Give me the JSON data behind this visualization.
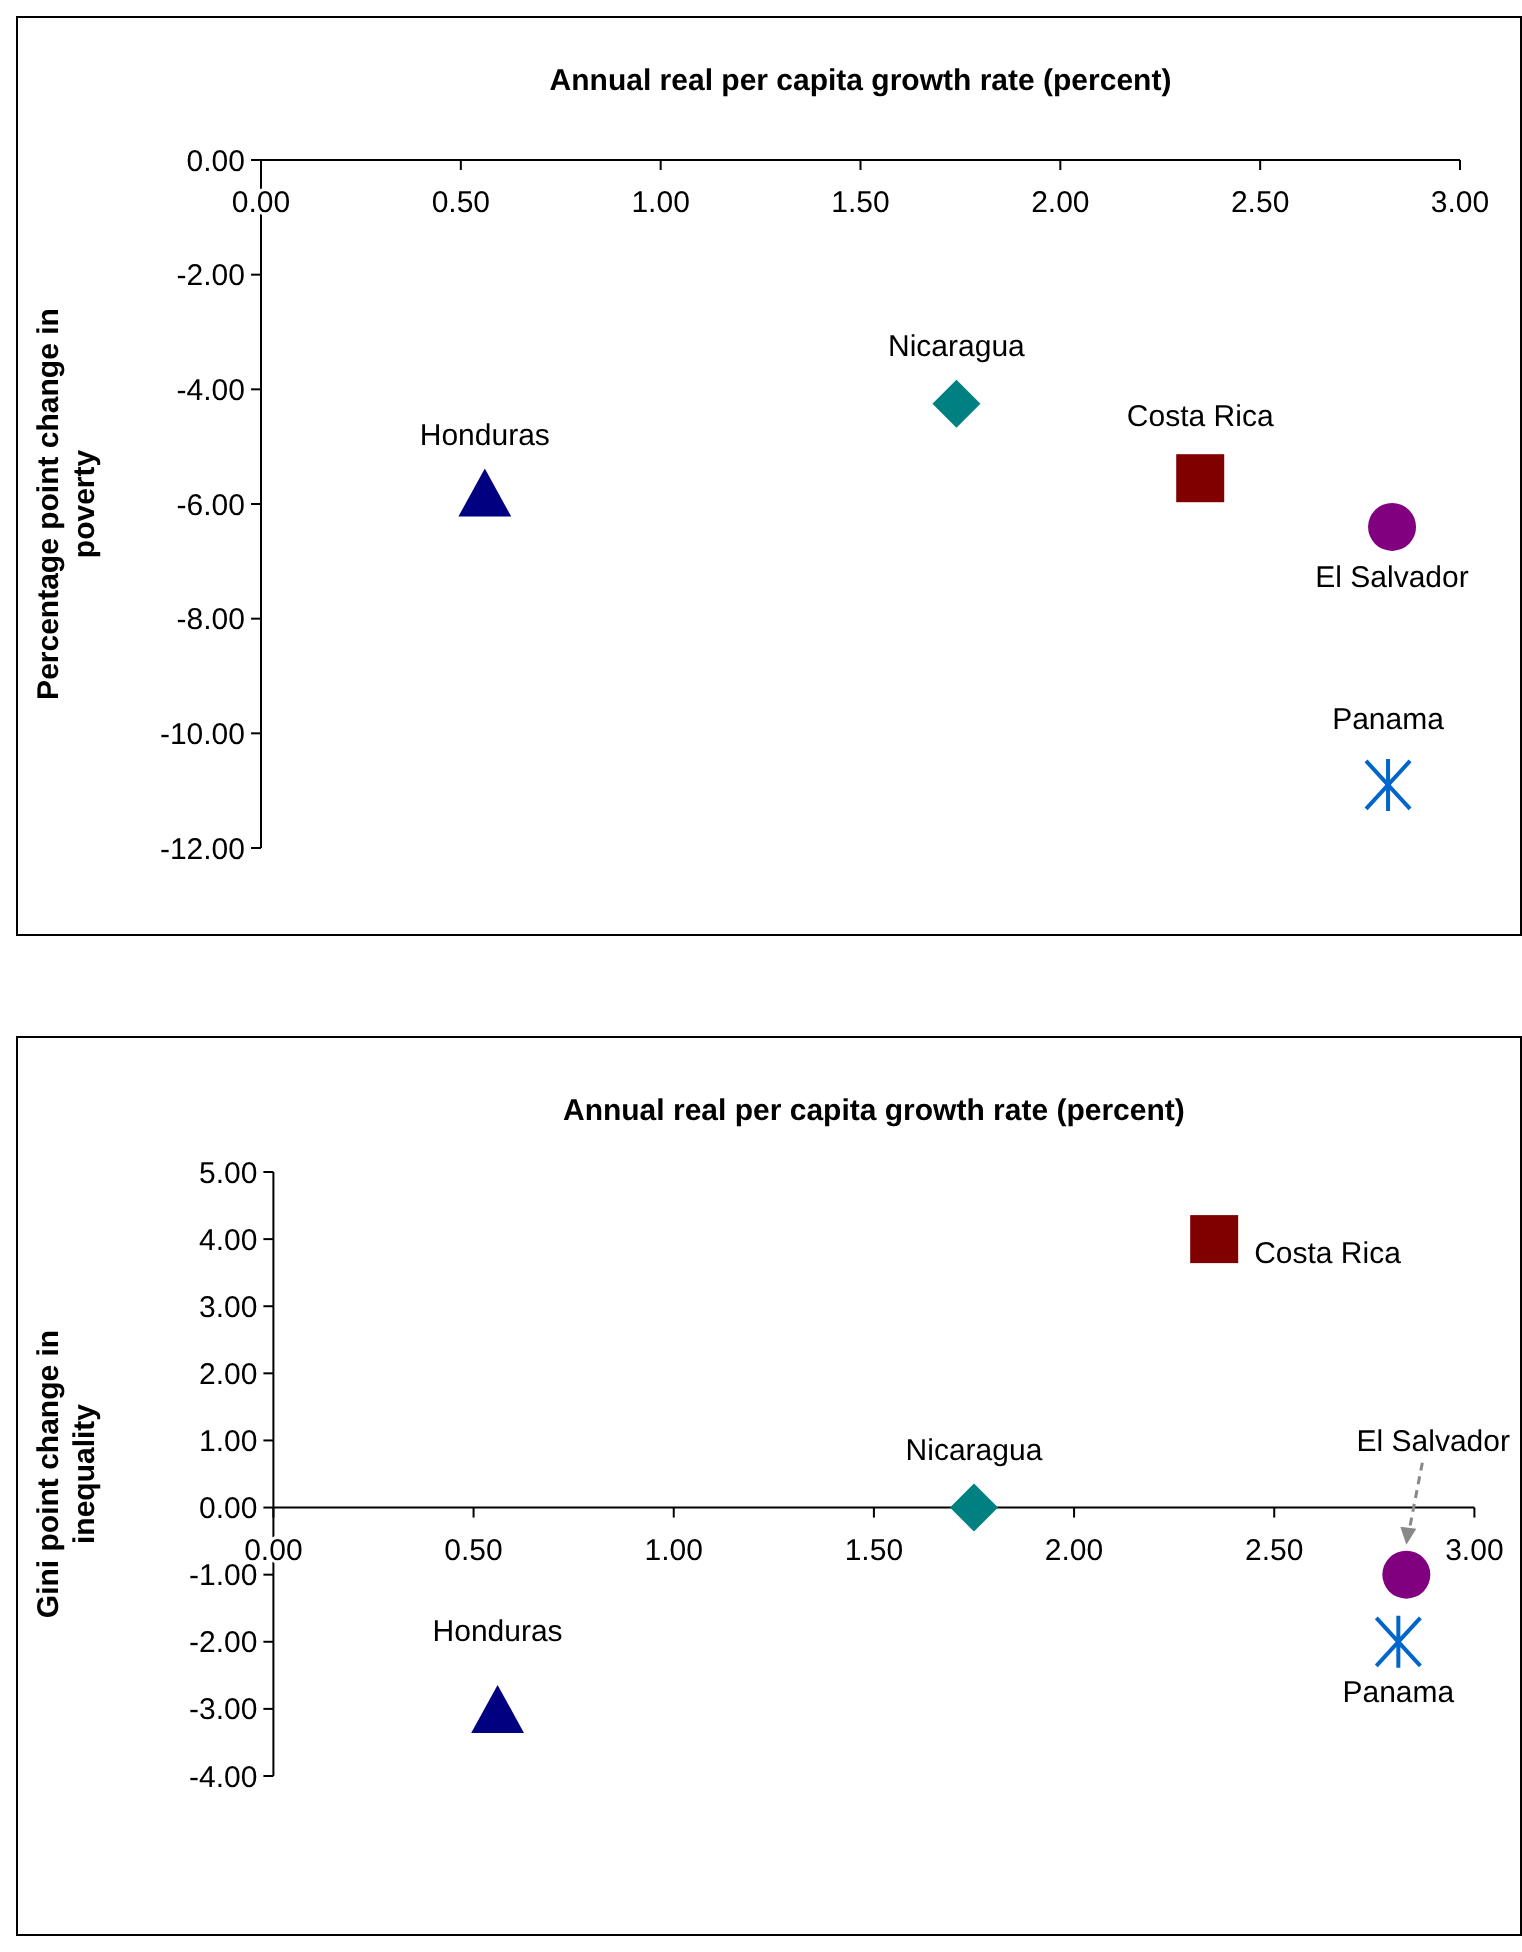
{
  "chart_data": [
    {
      "type": "scatter",
      "xlabel": "Annual real per capita growth rate (percent)",
      "ylabel": "Percentage point change in poverty",
      "xlim": [
        0,
        3
      ],
      "xticks": [
        {
          "value": 0,
          "label": "0.00"
        },
        {
          "value": 0.5,
          "label": "0.50"
        },
        {
          "value": 1,
          "label": "1.00"
        },
        {
          "value": 1.5,
          "label": "1.50"
        },
        {
          "value": 2,
          "label": "2.00"
        },
        {
          "value": 2.5,
          "label": "2.50"
        },
        {
          "value": 3,
          "label": "3.00"
        }
      ],
      "ylim": [
        -12,
        0
      ],
      "yticks": [
        {
          "value": 0,
          "label": "0.00"
        },
        {
          "value": -2,
          "label": "-2.00"
        },
        {
          "value": -4,
          "label": "-4.00"
        },
        {
          "value": -6,
          "label": "-6.00"
        },
        {
          "value": -8,
          "label": "-8.00"
        },
        {
          "value": -10,
          "label": "-10.00"
        },
        {
          "value": -12,
          "label": "-12.00"
        }
      ],
      "series": [
        {
          "name": "Honduras",
          "color": "#000080",
          "marker": "triangle",
          "x": [
            0.56
          ],
          "values": [
            -5.8
          ]
        },
        {
          "name": "Nicaragua",
          "color": "#008080",
          "marker": "diamond",
          "x": [
            1.74
          ],
          "values": [
            -4.25
          ]
        },
        {
          "name": "Costa Rica",
          "color": "#800000",
          "marker": "square",
          "x": [
            2.35
          ],
          "values": [
            -5.55
          ]
        },
        {
          "name": "El Salvador",
          "color": "#800080",
          "marker": "circle",
          "x": [
            2.83
          ],
          "values": [
            -6.4
          ]
        },
        {
          "name": "Panama",
          "color": "#0066cc",
          "marker": "cross",
          "x": [
            2.82
          ],
          "values": [
            -10.9
          ]
        }
      ]
    },
    {
      "type": "scatter",
      "xlabel": "Annual real per capita growth rate (percent)",
      "ylabel": "Gini point change in inequality",
      "xlim": [
        0,
        3
      ],
      "xticks": [
        {
          "value": 0,
          "label": "0.00"
        },
        {
          "value": 0.5,
          "label": "0.50"
        },
        {
          "value": 1,
          "label": "1.00"
        },
        {
          "value": 1.5,
          "label": "1.50"
        },
        {
          "value": 2,
          "label": "2.00"
        },
        {
          "value": 2.5,
          "label": "2.50"
        },
        {
          "value": 3,
          "label": "3.00"
        }
      ],
      "ylim": [
        -4,
        5
      ],
      "yticks": [
        {
          "value": 5,
          "label": "5.00"
        },
        {
          "value": 4,
          "label": "4.00"
        },
        {
          "value": 3,
          "label": "3.00"
        },
        {
          "value": 2,
          "label": "2.00"
        },
        {
          "value": 1,
          "label": "1.00"
        },
        {
          "value": 0,
          "label": "0.00"
        },
        {
          "value": -1,
          "label": "-1.00"
        },
        {
          "value": -2,
          "label": "-2.00"
        },
        {
          "value": -3,
          "label": "-3.00"
        },
        {
          "value": -4,
          "label": "-4.00"
        }
      ],
      "series": [
        {
          "name": "Honduras",
          "color": "#000080",
          "marker": "triangle",
          "x": [
            0.56
          ],
          "values": [
            -3.0
          ]
        },
        {
          "name": "Nicaragua",
          "color": "#008080",
          "marker": "diamond",
          "x": [
            1.75
          ],
          "values": [
            0
          ]
        },
        {
          "name": "Costa Rica",
          "color": "#800000",
          "marker": "square",
          "x": [
            2.35
          ],
          "values": [
            4.0
          ]
        },
        {
          "name": "El Salvador",
          "color": "#800080",
          "marker": "circle",
          "x": [
            2.83
          ],
          "values": [
            -1.0
          ]
        },
        {
          "name": "Panama",
          "color": "#0066cc",
          "marker": "cross",
          "x": [
            2.81
          ],
          "values": [
            -2.0
          ]
        }
      ]
    }
  ]
}
